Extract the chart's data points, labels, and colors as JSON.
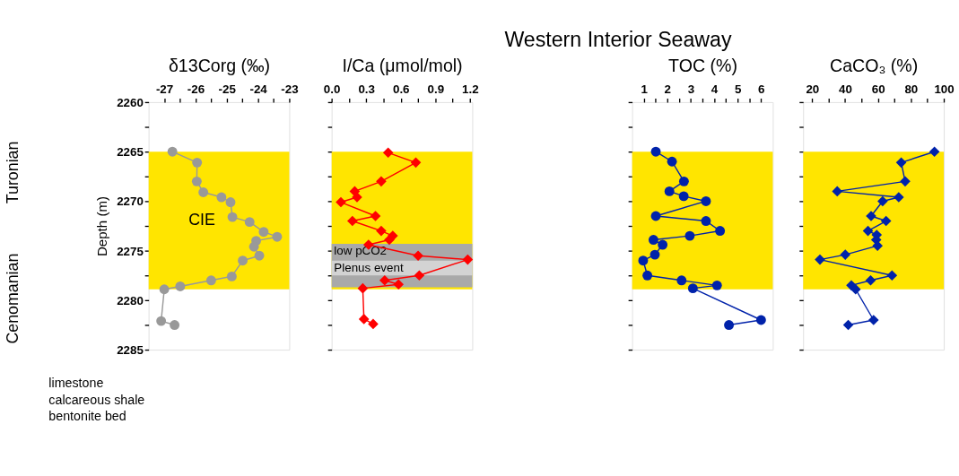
{
  "chart_data": [
    {
      "type": "line",
      "xlabel": "δ13Corg (‰)",
      "ylabel": "Depth (m)",
      "marker": "circle",
      "grid": false,
      "xlim": [
        -27.5,
        -23
      ],
      "xticks": [
        -27,
        {
          "value": -26.5,
          "label": null
        },
        -26,
        {
          "value": -25.5,
          "label": null
        },
        -25,
        {
          "value": -24.5,
          "label": null
        },
        -24,
        {
          "value": -23.5,
          "label": null
        },
        -23
      ],
      "ylim": [
        2285,
        2260
      ],
      "yticks": [
        2260,
        {
          "value": 2262.5,
          "label": null
        },
        2265,
        {
          "value": 2267.5,
          "label": null
        },
        2270,
        {
          "value": 2272.5,
          "label": null
        },
        2275,
        {
          "value": 2277.5,
          "label": null
        },
        2280,
        {
          "value": 2282.5,
          "label": null
        },
        2285
      ],
      "bands": [
        {
          "axis": "y",
          "from": 2265,
          "to": 2278.9,
          "label": "CIE",
          "color": "#ffe500"
        }
      ],
      "annotations": [
        "Turonian",
        "Cenomanian",
        "limestone",
        "calcareous shale",
        "bentonite bed"
      ],
      "series": [
        {
          "color": "#999999",
          "x": [
            -26.74,
            -25.95,
            -25.96,
            -25.75,
            -25.17,
            -24.88,
            -24.82,
            -24.27,
            -23.82,
            -23.39,
            -24.06,
            -24.13,
            -23.96,
            -24.49,
            -24.84,
            -25.5,
            -26.49,
            -27.0,
            -27.1,
            -26.67
          ],
          "values": [
            2265.0,
            2266.1,
            2268.0,
            2269.1,
            2269.6,
            2270.1,
            2271.6,
            2272.1,
            2273.1,
            2273.6,
            2274.0,
            2274.6,
            2275.5,
            2276.0,
            2277.6,
            2278.0,
            2278.6,
            2278.9,
            2282.1,
            2282.5
          ]
        }
      ]
    },
    {
      "type": "line",
      "xlabel": "I/Ca (μmol/mol)",
      "marker": "diamond",
      "grid": false,
      "tick_labels": "x",
      "xlim": [
        0,
        1.22
      ],
      "xticks": [
        {
          "value": 0,
          "label": "0.0"
        },
        {
          "value": 0.15,
          "label": null
        },
        0.3,
        {
          "value": 0.45,
          "label": null
        },
        0.6,
        {
          "value": 0.75,
          "label": null
        },
        0.9,
        {
          "value": 1.05,
          "label": null
        },
        1.2
      ],
      "ylim": [
        2285,
        2260
      ],
      "yticks": [
        2260,
        {
          "value": 2262.5,
          "label": null
        },
        2265,
        {
          "value": 2267.5,
          "label": null
        },
        2270,
        {
          "value": 2272.5,
          "label": null
        },
        2275,
        {
          "value": 2277.5,
          "label": null
        },
        2280,
        {
          "value": 2282.5,
          "label": null
        },
        2285
      ],
      "bands": [
        {
          "axis": "y",
          "from": 2265,
          "to": 2278.9,
          "label": null,
          "color": "#ffe500"
        },
        {
          "axis": "y",
          "from": 2274.3,
          "to": 2278.7,
          "label": "low pCO2",
          "color": "#a9a9a9"
        },
        {
          "axis": "y",
          "from": 2276.0,
          "to": 2277.5,
          "label": "Plenus event",
          "color": "#d3d3d3"
        }
      ],
      "series": [
        {
          "color": "#ff0000",
          "x": [
            0.49,
            0.73,
            0.43,
            0.2,
            0.22,
            0.08,
            0.38,
            0.18,
            0.43,
            0.53,
            0.5,
            0.32,
            0.75,
            1.18,
            0.76,
            0.46,
            0.58,
            0.27,
            0.28,
            0.36
          ],
          "values": [
            2265.1,
            2266.1,
            2268.0,
            2269.0,
            2269.6,
            2270.1,
            2271.5,
            2272.0,
            2273.0,
            2273.5,
            2273.9,
            2274.4,
            2275.5,
            2275.9,
            2277.5,
            2278.0,
            2278.4,
            2278.8,
            2281.9,
            2282.4
          ]
        }
      ]
    },
    {
      "type": "line",
      "title": "Western Interior Seaway",
      "xlabel": "TOC (%)",
      "marker": "circle",
      "grid": false,
      "tick_labels": "x",
      "xlim": [
        0.5,
        6.5
      ],
      "xticks": [
        1,
        {
          "value": 1.5,
          "label": null
        },
        2,
        {
          "value": 2.5,
          "label": null
        },
        3,
        {
          "value": 3.5,
          "label": null
        },
        4,
        {
          "value": 4.5,
          "label": null
        },
        5,
        {
          "value": 5.5,
          "label": null
        },
        6
      ],
      "ylim": [
        2285,
        2260
      ],
      "yticks": [
        2260,
        {
          "value": 2262.5,
          "label": null
        },
        2265,
        {
          "value": 2267.5,
          "label": null
        },
        2270,
        {
          "value": 2272.5,
          "label": null
        },
        2275,
        {
          "value": 2277.5,
          "label": null
        },
        2280,
        {
          "value": 2282.5,
          "label": null
        },
        2285
      ],
      "bands": [
        {
          "axis": "y",
          "from": 2265,
          "to": 2278.9,
          "label": null,
          "color": "#ffe500"
        }
      ],
      "series": [
        {
          "color": "#0022aa",
          "x": [
            1.51,
            2.2,
            2.71,
            2.09,
            2.7,
            3.65,
            1.51,
            3.65,
            4.25,
            2.96,
            1.41,
            1.8,
            1.47,
            0.97,
            1.15,
            2.61,
            4.12,
            3.09,
            6.0,
            4.63
          ],
          "values": [
            2265.0,
            2266.0,
            2268.0,
            2269.0,
            2269.5,
            2270.0,
            2271.5,
            2272.0,
            2273.0,
            2273.5,
            2273.9,
            2274.4,
            2275.4,
            2276.0,
            2277.5,
            2278.0,
            2278.5,
            2278.8,
            2282.0,
            2282.5
          ]
        }
      ]
    },
    {
      "type": "line",
      "xlabel": "CaCO₃ (%)",
      "marker": "diamond",
      "grid": false,
      "tick_labels": "x",
      "xlim": [
        14.5,
        100
      ],
      "xticks": [
        20,
        {
          "value": 30,
          "label": null
        },
        40,
        {
          "value": 50,
          "label": null
        },
        60,
        {
          "value": 70,
          "label": null
        },
        80,
        {
          "value": 90,
          "label": null
        },
        100
      ],
      "ylim": [
        2285,
        2260
      ],
      "yticks": [
        2260,
        {
          "value": 2262.5,
          "label": null
        },
        2265,
        {
          "value": 2267.5,
          "label": null
        },
        2270,
        {
          "value": 2272.5,
          "label": null
        },
        2275,
        {
          "value": 2277.5,
          "label": null
        },
        2280,
        {
          "value": 2282.5,
          "label": null
        },
        2285
      ],
      "bands": [
        {
          "axis": "y",
          "from": 2265,
          "to": 2278.9,
          "label": null,
          "color": "#ffe500"
        }
      ],
      "series": [
        {
          "color": "#0022aa",
          "x": [
            94.3,
            74.1,
            76.5,
            35.2,
            72.6,
            62.8,
            55.8,
            64.9,
            53.9,
            59.2,
            58.9,
            59.7,
            40.1,
            24.7,
            68.5,
            55.5,
            43.8,
            46.4,
            57.3,
            41.9
          ],
          "values": [
            2265.0,
            2266.1,
            2268.0,
            2269.0,
            2269.6,
            2270.0,
            2271.5,
            2272.0,
            2273.0,
            2273.4,
            2273.9,
            2274.5,
            2275.4,
            2275.9,
            2277.5,
            2278.0,
            2278.5,
            2278.9,
            2282.0,
            2282.5
          ]
        }
      ]
    }
  ]
}
